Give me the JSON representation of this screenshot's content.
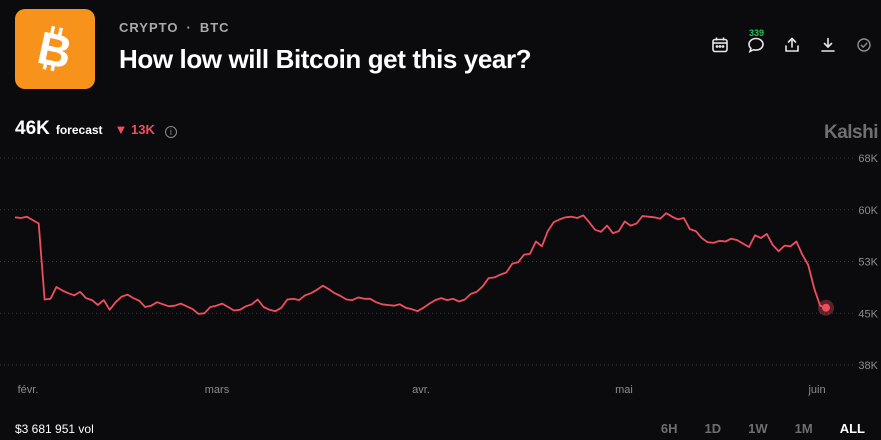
{
  "header": {
    "category": "CRYPTO",
    "separator": "·",
    "ticker": "BTC",
    "title": "How low will Bitcoin get this year?",
    "comment_count": "339"
  },
  "icons": [
    "bitcoin-logo",
    "calendar-icon",
    "comment-icon",
    "share-icon",
    "download-icon",
    "check-circle-icon"
  ],
  "forecast": {
    "value": "46K",
    "label": "forecast",
    "delta_arrow": "▼",
    "delta": "13K",
    "info": "i"
  },
  "brand": "Kalshi",
  "footer": {
    "volume": "$3 681 951 vol",
    "ranges": [
      "6H",
      "1D",
      "1W",
      "1M",
      "ALL"
    ],
    "active_range": "ALL"
  },
  "colors": {
    "background": "#0b0b0d",
    "line": "#ef4e5e",
    "logo": "#f7931a",
    "comment_badge": "#22c55e"
  },
  "chart_data": {
    "type": "line",
    "x_ticks": [
      "févr.",
      "mars",
      "avr.",
      "mai",
      "juin"
    ],
    "y_ticks": [
      "68K",
      "60K",
      "53K",
      "45K",
      "38K"
    ],
    "ylim": [
      38,
      68
    ],
    "grid": true,
    "series": [
      {
        "values": [
          59.4,
          59.3,
          59.5,
          59.0,
          58.5,
          47.5,
          47.6,
          49.3,
          48.8,
          48.4,
          48.1,
          48.6,
          47.7,
          47.4,
          46.7,
          47.4,
          46.0,
          47.1,
          47.9,
          48.2,
          47.7,
          47.3,
          46.4,
          46.6,
          47.1,
          46.8,
          46.5,
          46.6,
          46.9,
          46.5,
          46.1,
          45.4,
          45.5,
          46.4,
          46.6,
          46.9,
          46.4,
          45.9,
          46.0,
          46.5,
          46.8,
          47.5,
          46.4,
          46.0,
          45.8,
          46.3,
          47.5,
          47.6,
          47.4,
          48.1,
          48.4,
          48.9,
          49.5,
          49.0,
          48.4,
          48.0,
          47.5,
          47.4,
          47.8,
          47.6,
          47.6,
          47.1,
          46.8,
          46.7,
          46.6,
          46.8,
          46.3,
          46.1,
          45.8,
          46.3,
          46.9,
          47.4,
          47.7,
          47.4,
          47.6,
          47.2,
          47.5,
          48.3,
          48.6,
          49.4,
          50.6,
          50.7,
          51.1,
          51.4,
          52.7,
          52.9,
          54.0,
          54.1,
          55.9,
          55.2,
          57.4,
          58.7,
          59.1,
          59.4,
          59.5,
          59.3,
          59.7,
          58.7,
          57.6,
          57.3,
          58.2,
          57.1,
          57.4,
          58.8,
          58.2,
          58.5,
          59.6,
          59.5,
          59.4,
          59.2,
          60.0,
          59.5,
          59.1,
          59.3,
          57.7,
          57.4,
          56.4,
          55.8,
          55.7,
          56.0,
          55.9,
          56.3,
          56.1,
          55.6,
          55.1,
          56.8,
          56.4,
          57.0,
          55.4,
          54.5,
          55.3,
          55.2,
          55.9,
          54.0,
          52.5,
          49.1,
          46.6,
          46.3
        ]
      }
    ]
  }
}
